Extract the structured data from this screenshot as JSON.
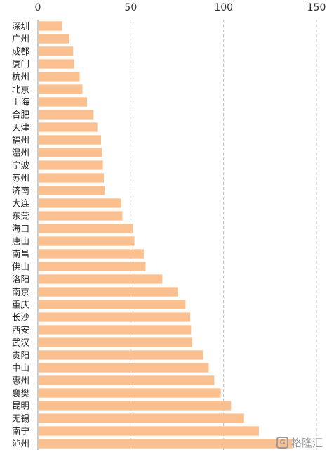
{
  "chart_data": {
    "type": "bar",
    "orientation": "horizontal",
    "categories": [
      "深圳",
      "广州",
      "成都",
      "厦门",
      "杭州",
      "北京",
      "上海",
      "合肥",
      "天津",
      "福州",
      "温州",
      "宁波",
      "苏州",
      "济南",
      "大连",
      "东莞",
      "海口",
      "唐山",
      "南昌",
      "佛山",
      "洛阳",
      "南京",
      "重庆",
      "长沙",
      "西安",
      "武汉",
      "贵阳",
      "中山",
      "惠州",
      "襄樊",
      "昆明",
      "无锡",
      "南宁",
      "泸州"
    ],
    "values": [
      13,
      17,
      19,
      19.5,
      22.5,
      24,
      26.5,
      30,
      32,
      34,
      34.5,
      35,
      35.5,
      36,
      45,
      45.5,
      51,
      52,
      57,
      58,
      67,
      75.5,
      79.5,
      82,
      82.5,
      83,
      89,
      92,
      95,
      98.5,
      104,
      111,
      119,
      137
    ],
    "xlim": [
      0,
      150
    ],
    "xticks": [
      0,
      50,
      100,
      150
    ],
    "grid": "vertical dashed",
    "bar_color": "#FBC08F",
    "title": "",
    "xlabel": "",
    "ylabel": ""
  },
  "watermark": {
    "text": "格隆汇",
    "logo": "G"
  }
}
